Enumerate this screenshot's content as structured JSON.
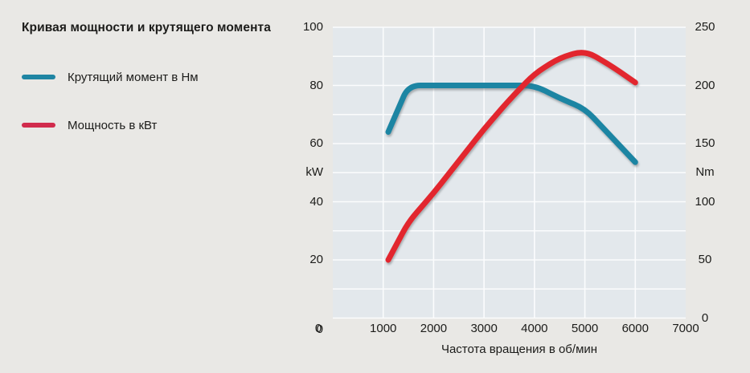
{
  "title": "Кривая мощности и крутящего момента",
  "legend": {
    "swatch_colors": [
      "#1f85a3",
      "#d12b4c"
    ]
  },
  "colors": {
    "page_bg": "#e9e8e5",
    "plot_bg": "#e3e8ec",
    "grid": "#fbfcfd",
    "text": "#1c1c1a"
  },
  "chart_data": {
    "type": "line",
    "title": "Кривая мощности и крутящего момента",
    "x_axis": {
      "label": "Частота вращения в об/мин",
      "range": [
        0,
        7000
      ],
      "ticks": [
        0,
        1000,
        2000,
        3000,
        4000,
        5000,
        6000,
        7000
      ],
      "grid_step": 1000
    },
    "y_left": {
      "unit": "kW",
      "range": [
        0,
        100
      ],
      "ticks": [
        100,
        80,
        60,
        40,
        20,
        0
      ],
      "unit_at_value": 50,
      "grid_step": 10
    },
    "y_right": {
      "unit": "Nm",
      "range": [
        0,
        250
      ],
      "ticks": [
        250,
        200,
        150,
        100,
        50,
        0
      ],
      "unit_at_value": 125
    },
    "grid": true,
    "legend_position": "left",
    "series": [
      {
        "name": "Крутящий момент в Нм",
        "axis": "right",
        "unit": "Nm",
        "color": "#1f85a3",
        "points": [
          [
            1100,
            160
          ],
          [
            1500,
            200
          ],
          [
            4000,
            200
          ],
          [
            4500,
            189
          ],
          [
            5000,
            180
          ],
          [
            6000,
            134
          ]
        ]
      },
      {
        "name": "Мощность в кВт",
        "axis": "left",
        "unit": "kW",
        "color": "#e2282e",
        "points": [
          [
            1100,
            20
          ],
          [
            1500,
            33
          ],
          [
            2000,
            43
          ],
          [
            2500,
            54
          ],
          [
            3000,
            65
          ],
          [
            3500,
            75
          ],
          [
            4000,
            84
          ],
          [
            4500,
            89.5
          ],
          [
            5000,
            92
          ],
          [
            5500,
            87
          ],
          [
            6000,
            81
          ]
        ]
      }
    ]
  }
}
